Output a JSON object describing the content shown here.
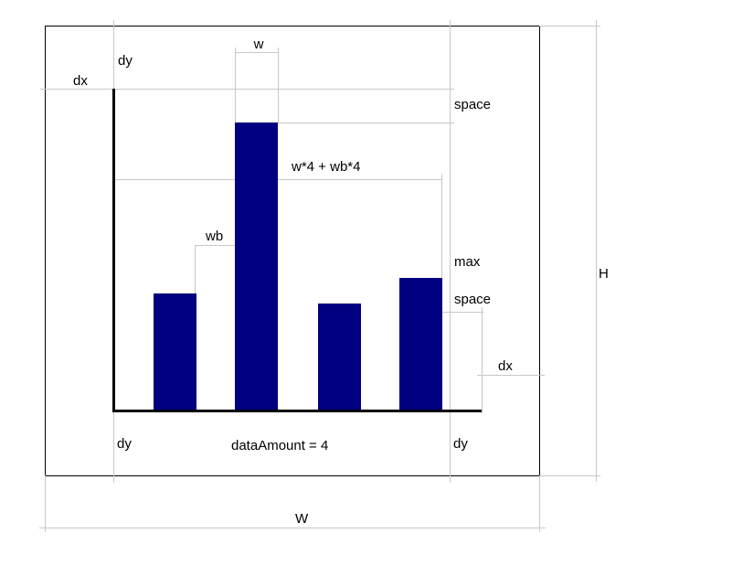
{
  "colors": {
    "bar": "#000080",
    "frame": "#000000",
    "guide": "#c8c8c8",
    "axis": "#000000"
  },
  "labels": {
    "w": "w",
    "dy_top": "dy",
    "dx_left": "dx",
    "space_top": "space",
    "bars_total": "w*4 + wb*4",
    "wb": "wb",
    "max": "max",
    "space_right": "space",
    "dx_right": "dx",
    "dy_bottom_left": "dy",
    "data_amount": "dataAmount = 4",
    "dy_bottom_right": "dy",
    "height": "H",
    "width": "W"
  }
}
